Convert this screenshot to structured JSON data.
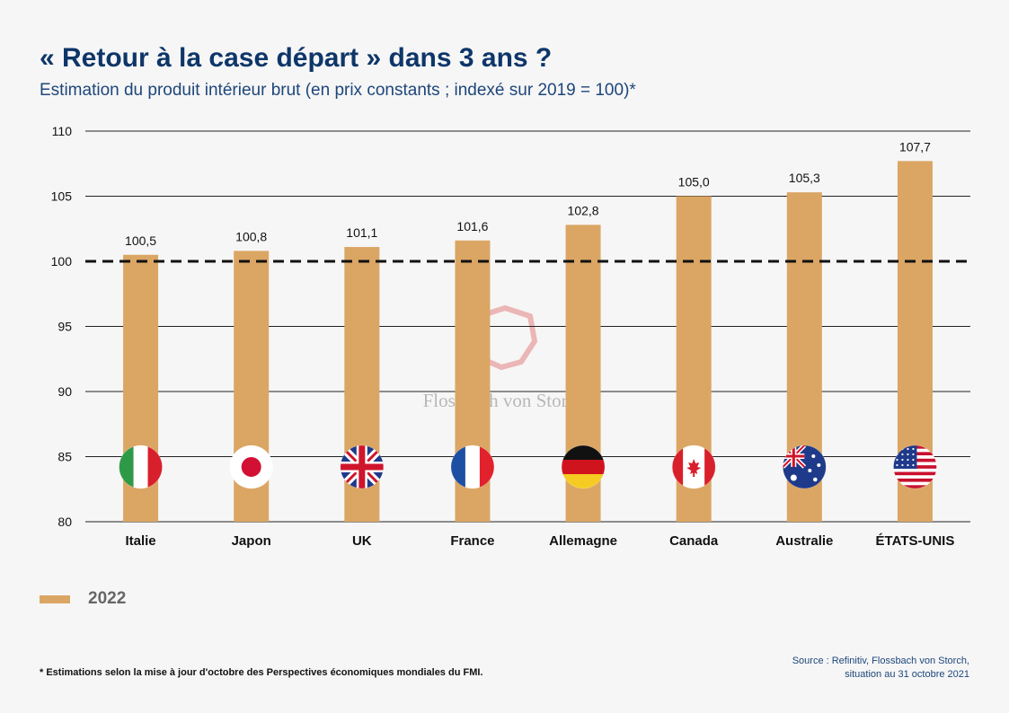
{
  "title": "« Retour à la case départ » dans 3 ans ?",
  "subtitle": "Estimation du produit intérieur brut (en prix constants ; indexé sur 2019 = 100)*",
  "watermark": "Flossbach von Storch",
  "footnote": "* Estimations selon la mise à jour d'octobre des Perspectives économiques mondiales du FMI.",
  "source": {
    "line1": "Source : Refinitiv, Flossbach von Storch,",
    "line2": "situation au 31 octobre 2021"
  },
  "colors": {
    "bar": "#dba664",
    "title": "#0e3669",
    "reference_line": "#000000"
  },
  "chart_data": {
    "type": "bar",
    "categories": [
      "Italie",
      "Japon",
      "UK",
      "France",
      "Allemagne",
      "Canada",
      "Australie",
      "ÉTATS-UNIS"
    ],
    "series": [
      {
        "name": "2022",
        "values": [
          100.5,
          100.8,
          101.1,
          101.6,
          102.8,
          105.0,
          105.3,
          107.7
        ]
      }
    ],
    "value_labels": [
      "100,5",
      "100,8",
      "101,1",
      "101,6",
      "102,8",
      "105,0",
      "105,3",
      "107,7"
    ],
    "flag_icons": [
      "italy-flag-icon",
      "japan-flag-icon",
      "uk-flag-icon",
      "france-flag-icon",
      "germany-flag-icon",
      "canada-flag-icon",
      "australia-flag-icon",
      "usa-flag-icon"
    ],
    "ylim": [
      80,
      110
    ],
    "yticks": [
      80,
      85,
      90,
      95,
      100,
      105,
      110
    ],
    "reference_line": {
      "value": 100,
      "style": "dashed"
    },
    "grid": true,
    "legend_position": "bottom-left"
  }
}
